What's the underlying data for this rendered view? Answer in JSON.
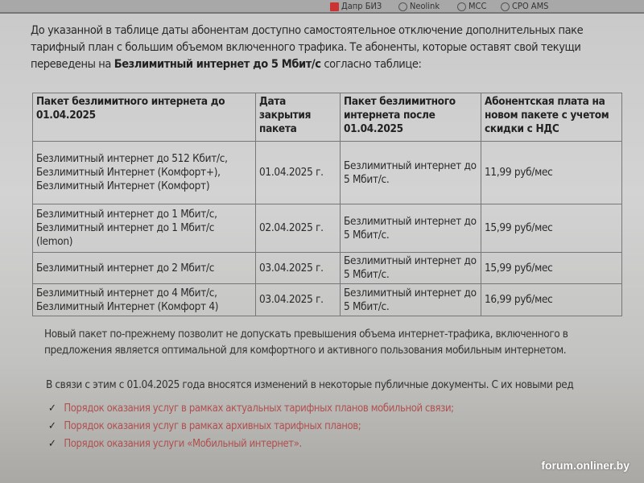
{
  "bookmarks": [
    "Дапр БИЗ",
    "Neolink",
    "MCC",
    "CPO AMS"
  ],
  "intro": {
    "line1": "До указанной в таблице даты абонентам доступно самостоятельное отключение дополнительных паке",
    "line2": "тарифный план с большим объемом включенного трафика. Те абоненты, которые оставят свой текущи",
    "line3_pre": "переведены на ",
    "line3_bold": "Безлимитный интернет до 5 Мбит/с",
    "line3_post": " согласно таблице:"
  },
  "table": {
    "headers": [
      "Пакет безлимитного интернета до 01.04.2025",
      "Дата закрытия пакета",
      "Пакет безлимитного интернета после 01.04.2025",
      "Абонентская плата на новом пакете с учетом скидки с НДС"
    ],
    "rows": [
      [
        "Безлимитный интернет до 512 Кбит/с, Безлимитный Интернет (Комфорт+), Безлимитный Интернет (Комфорт)",
        "01.04.2025 г.",
        "Безлимитный интернет до 5 Мбит/с.",
        "11,99 руб/мес"
      ],
      [
        "Безлимитный интернет до 1 Мбит/с, Безлимитный интернет до 1 Мбит/с (lemon)",
        "02.04.2025 г.",
        "Безлимитный интернет до 5 Мбит/с.",
        "15,99 руб/мес"
      ],
      [
        "Безлимитный интернет до 2 Мбит/с",
        "03.04.2025 г.",
        "Безлимитный интернет до 5 Мбит/с.",
        "15,99 руб/мес"
      ],
      [
        "Безлимитный интернет до 4 Мбит/с, Безлимитный Интернет (Комфорт 4)",
        "03.04.2025 г.",
        "Безлимитный интернет до 5 Мбит/с.",
        "16,99 руб/мес"
      ]
    ]
  },
  "note": {
    "line1": "Новый пакет по-прежнему позволит не допускать превышения объема интернет-трафика, включенного в",
    "line2": "предложения является оптимальной для комфортного и активного пользования мобильным интернетом."
  },
  "changes_text": "В связи с этим с 01.04.2025 года вносятся изменений в некоторые публичные документы. С их новыми ред",
  "links": [
    "Порядок оказания услуг в рамках актуальных тарифных планов мобильной связи;",
    "Порядок оказания услуг в рамках архивных тарифных планов;",
    "Порядок оказания услуги «Мобильный интернет»."
  ],
  "watermark": "forum.onliner.by",
  "colors": {
    "link": "#b0504f"
  }
}
